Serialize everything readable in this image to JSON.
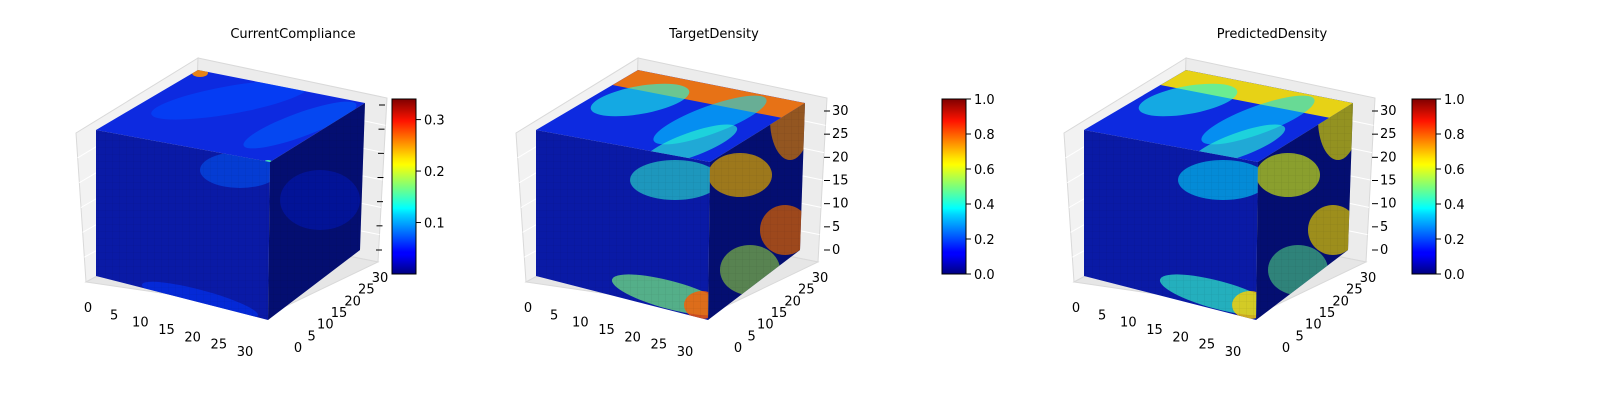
{
  "chart_data": [
    {
      "type": "heatmap",
      "title": "CurrentCompliance",
      "colormap": "jet",
      "colorbar": {
        "min": 0.0,
        "max": 0.34,
        "ticks": [
          "0.1",
          "0.2",
          "0.3"
        ],
        "tick_values": [
          0.1,
          0.2,
          0.3
        ]
      },
      "x_ticks": [
        "0",
        "5",
        "10",
        "15",
        "20",
        "25",
        "30"
      ],
      "y_ticks": [
        "0",
        "5",
        "10",
        "15",
        "20",
        "25",
        "30"
      ],
      "z_ticks": [],
      "grid": true
    },
    {
      "type": "heatmap",
      "title": "TargetDensity",
      "colormap": "jet",
      "colorbar": {
        "min": 0.0,
        "max": 1.0,
        "ticks": [
          "0.0",
          "0.2",
          "0.4",
          "0.6",
          "0.8",
          "1.0"
        ],
        "tick_values": [
          0.0,
          0.2,
          0.4,
          0.6,
          0.8,
          1.0
        ]
      },
      "x_ticks": [
        "0",
        "5",
        "10",
        "15",
        "20",
        "25",
        "30"
      ],
      "y_ticks": [
        "0",
        "5",
        "10",
        "15",
        "20",
        "25",
        "30"
      ],
      "z_ticks": [
        "0",
        "5",
        "10",
        "15",
        "20",
        "25",
        "30"
      ],
      "grid": true
    },
    {
      "type": "heatmap",
      "title": "PredictedDensity",
      "colormap": "jet",
      "colorbar": {
        "min": 0.0,
        "max": 1.0,
        "ticks": [
          "0.0",
          "0.2",
          "0.4",
          "0.6",
          "0.8",
          "1.0"
        ],
        "tick_values": [
          0.0,
          0.2,
          0.4,
          0.6,
          0.8,
          1.0
        ]
      },
      "x_ticks": [
        "0",
        "5",
        "10",
        "15",
        "20",
        "25",
        "30"
      ],
      "y_ticks": [
        "0",
        "5",
        "10",
        "15",
        "20",
        "25",
        "30"
      ],
      "z_ticks": [
        "0",
        "5",
        "10",
        "15",
        "20",
        "25",
        "30"
      ],
      "grid": true
    }
  ]
}
